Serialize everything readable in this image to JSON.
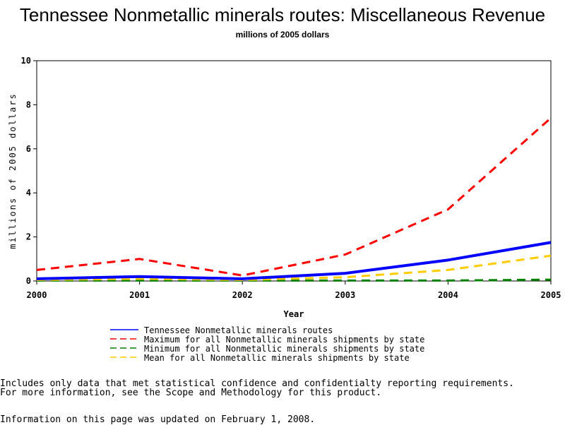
{
  "chart_data": {
    "type": "line",
    "title": "Tennessee Nonmetallic minerals routes: Miscellaneous Revenue",
    "subtitle": "millions of 2005 dollars",
    "xlabel": "Year",
    "ylabel": "millions of 2005 dollars",
    "x": [
      2000,
      2001,
      2002,
      2003,
      2004,
      2005
    ],
    "xticks": [
      "2000",
      "2001",
      "2002",
      "2003",
      "2004",
      "2005"
    ],
    "yticks": [
      "0",
      "2",
      "4",
      "6",
      "8",
      "10"
    ],
    "ylim": [
      0,
      10
    ],
    "legend_position": "bottom",
    "series": [
      {
        "name": "Tennessee Nonmetallic minerals routes",
        "color": "#0000ff",
        "style": "solid",
        "values": [
          0.1,
          0.2,
          0.1,
          0.35,
          0.95,
          1.75
        ]
      },
      {
        "name": "Maximum for all Nonmetallic minerals shipments by state",
        "color": "#ff0000",
        "style": "dashed",
        "values": [
          0.5,
          1.0,
          0.25,
          1.2,
          3.25,
          7.4
        ]
      },
      {
        "name": "Minimum for all Nonmetallic minerals shipments by state",
        "color": "#008000",
        "style": "dashed",
        "values": [
          0.02,
          0.02,
          0.02,
          0.02,
          0.02,
          0.06
        ]
      },
      {
        "name": "Mean for all Nonmetallic minerals shipments by state",
        "color": "#ffcc00",
        "style": "dashed",
        "values": [
          0.05,
          0.1,
          0.05,
          0.17,
          0.5,
          1.15
        ]
      }
    ]
  },
  "notes": {
    "line1": "Includes only data that met statistical confidence and confidentialty reporting requirements.",
    "line2": "For more information, see the Scope and Methodology for this product.",
    "updated": "Information on this page was updated on February 1, 2008."
  }
}
